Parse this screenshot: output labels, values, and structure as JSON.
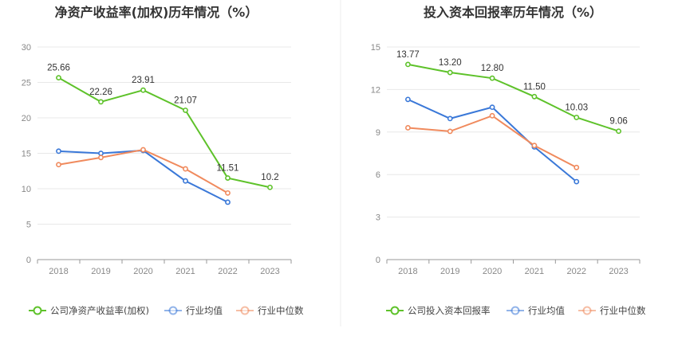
{
  "colors": {
    "company": "#5ec22a",
    "industry_avg": "#3a78d8",
    "industry_median": "#f08a5d"
  },
  "chart_data": [
    {
      "type": "line",
      "title": "净资产收益率(加权)历年情况（%）",
      "categories": [
        "2018",
        "2019",
        "2020",
        "2021",
        "2022",
        "2023"
      ],
      "ylim": [
        0,
        30
      ],
      "yticks": [
        0,
        5,
        10,
        15,
        20,
        25,
        30
      ],
      "grid": true,
      "legend_position": "bottom-left",
      "series": [
        {
          "name": "公司净资产收益率(加权)",
          "values": [
            25.66,
            22.26,
            23.91,
            21.07,
            11.51,
            10.2
          ],
          "labels": [
            "25.66",
            "22.26",
            "23.91",
            "21.07",
            "11.51",
            "10.2"
          ]
        },
        {
          "name": "行业均值",
          "values": [
            15.3,
            15.0,
            15.4,
            11.1,
            8.1,
            null
          ]
        },
        {
          "name": "行业中位数",
          "values": [
            13.4,
            14.4,
            15.5,
            12.8,
            9.4,
            null
          ]
        }
      ]
    },
    {
      "type": "line",
      "title": "投入资本回报率历年情况（%）",
      "categories": [
        "2018",
        "2019",
        "2020",
        "2021",
        "2022",
        "2023"
      ],
      "ylim": [
        0,
        15
      ],
      "yticks": [
        0,
        3,
        6,
        9,
        12,
        15
      ],
      "grid": true,
      "legend_position": "bottom-left",
      "series": [
        {
          "name": "公司投入资本回报率",
          "values": [
            13.77,
            13.2,
            12.8,
            11.5,
            10.03,
            9.06
          ],
          "labels": [
            "13.77",
            "13.20",
            "12.80",
            "11.50",
            "10.03",
            "9.06"
          ]
        },
        {
          "name": "行业均值",
          "values": [
            11.3,
            9.95,
            10.75,
            7.95,
            5.5,
            null
          ]
        },
        {
          "name": "行业中位数",
          "values": [
            9.3,
            9.05,
            10.15,
            8.05,
            6.5,
            null
          ]
        }
      ]
    }
  ]
}
